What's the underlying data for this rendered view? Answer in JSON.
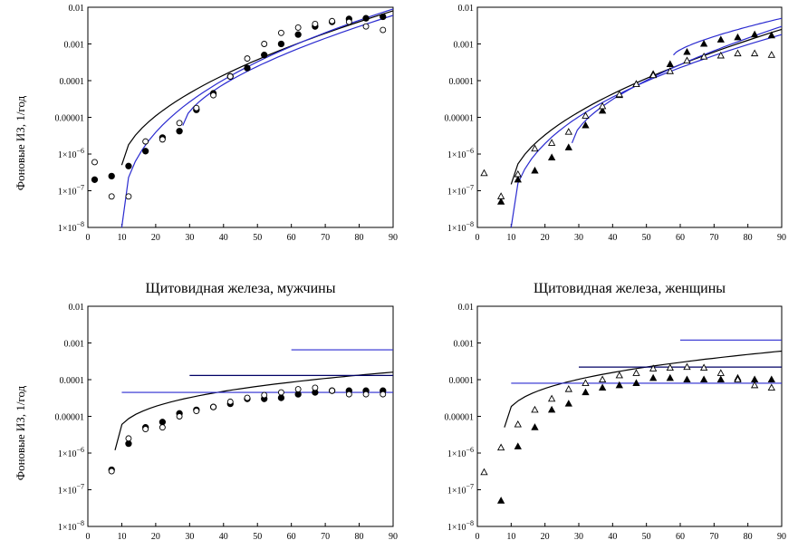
{
  "ylabel": "Фоновые ИЗ, 1/год",
  "chart_data": [
    {
      "type": "scatter",
      "title": "",
      "xlim": [
        0,
        90
      ],
      "ylim_log10": [
        -8,
        -2
      ],
      "xticks": [
        0,
        10,
        20,
        30,
        40,
        50,
        60,
        70,
        80,
        90
      ],
      "yticks": [
        {
          "v": -2,
          "m": "0.01",
          "e": ""
        },
        {
          "v": -3,
          "m": "0.001",
          "e": ""
        },
        {
          "v": -4,
          "m": "0.0001",
          "e": ""
        },
        {
          "v": -5,
          "m": "0.00001",
          "e": ""
        },
        {
          "v": -6,
          "m": "1×10",
          "e": "−6"
        },
        {
          "v": -7,
          "m": "1×10",
          "e": "−7"
        },
        {
          "v": -8,
          "m": "1×10",
          "e": "−8"
        }
      ],
      "points": [
        {
          "name": "filled-circles",
          "marker": "circle-filled",
          "x": [
            2,
            7,
            12,
            17,
            22,
            27,
            32,
            37,
            42,
            47,
            52,
            57,
            62,
            67,
            72,
            77,
            82,
            87
          ],
          "y": [
            2e-07,
            2.5e-07,
            4.7e-07,
            1.2e-06,
            2.8e-06,
            4.2e-06,
            1.6e-05,
            4.5e-05,
            0.00013,
            0.00022,
            0.0005,
            0.001,
            0.0018,
            0.003,
            0.004,
            0.0048,
            0.005,
            0.0055
          ]
        },
        {
          "name": "open-circles",
          "marker": "circle-open",
          "x": [
            2,
            7,
            12,
            17,
            22,
            27,
            32,
            37,
            42,
            47,
            52,
            57,
            62,
            67,
            72,
            77,
            82,
            87
          ],
          "y": [
            6e-07,
            7e-08,
            7e-08,
            2.2e-06,
            2.5e-06,
            7e-06,
            1.8e-05,
            4e-05,
            0.00013,
            0.0004,
            0.001,
            0.002,
            0.0028,
            0.0035,
            0.0042,
            0.004,
            0.003,
            0.0024
          ]
        }
      ],
      "lines": [
        {
          "name": "model-black",
          "color": "#000000",
          "x0": 10,
          "y0": 5e-07,
          "x1": 90,
          "y1": 0.008,
          "p": 0.55
        },
        {
          "name": "model-blue-1",
          "color": "#2b2bd0",
          "x0": 10,
          "y0": 1e-08,
          "x1": 90,
          "y1": 0.009,
          "p": 0.4
        },
        {
          "name": "model-blue-2",
          "color": "#2b2bd0",
          "x0": 28,
          "y0": 6e-06,
          "x1": 90,
          "y1": 0.006,
          "p": 0.6
        }
      ]
    },
    {
      "type": "scatter",
      "title": "",
      "xlim": [
        0,
        90
      ],
      "ylim_log10": [
        -8,
        -2
      ],
      "xticks": [
        0,
        10,
        20,
        30,
        40,
        50,
        60,
        70,
        80,
        90
      ],
      "yticks": [
        {
          "v": -2,
          "m": "0.01",
          "e": ""
        },
        {
          "v": -3,
          "m": "0.001",
          "e": ""
        },
        {
          "v": -4,
          "m": "0.0001",
          "e": ""
        },
        {
          "v": -5,
          "m": "0.00001",
          "e": ""
        },
        {
          "v": -6,
          "m": "1×10",
          "e": "−6"
        },
        {
          "v": -7,
          "m": "1×10",
          "e": "−7"
        },
        {
          "v": -8,
          "m": "1×10",
          "e": "−8"
        }
      ],
      "points": [
        {
          "name": "filled-triangles",
          "marker": "triangle-filled",
          "x": [
            7,
            12,
            17,
            22,
            27,
            32,
            37,
            42,
            47,
            52,
            57,
            62,
            67,
            72,
            77,
            82,
            87
          ],
          "y": [
            5e-08,
            2e-07,
            3.5e-07,
            8e-07,
            1.5e-06,
            6e-06,
            1.5e-05,
            4e-05,
            8e-05,
            0.00015,
            0.00028,
            0.0006,
            0.001,
            0.0013,
            0.0015,
            0.0018,
            0.0017
          ]
        },
        {
          "name": "open-triangles",
          "marker": "triangle-open",
          "x": [
            2,
            7,
            12,
            17,
            22,
            27,
            32,
            37,
            42,
            47,
            52,
            57,
            62,
            67,
            72,
            77,
            82,
            87
          ],
          "y": [
            3e-07,
            7e-08,
            2.8e-07,
            1.4e-06,
            2e-06,
            4e-06,
            1.1e-05,
            2e-05,
            4.2e-05,
            8e-05,
            0.00014,
            0.00018,
            0.00035,
            0.00045,
            0.00048,
            0.00055,
            0.00055,
            0.0005
          ]
        }
      ],
      "lines": [
        {
          "name": "model-black",
          "color": "#000000",
          "x0": 10,
          "y0": 1.5e-07,
          "x1": 90,
          "y1": 0.0025,
          "p": 0.55
        },
        {
          "name": "model-blue-1",
          "color": "#2b2bd0",
          "x0": 10,
          "y0": 1e-08,
          "x1": 90,
          "y1": 0.0018,
          "p": 0.4
        },
        {
          "name": "model-blue-2",
          "color": "#2b2bd0",
          "x0": 28,
          "y0": 2e-06,
          "x1": 90,
          "y1": 0.003,
          "p": 0.6
        },
        {
          "name": "model-blue-3",
          "color": "#2b2bd0",
          "x0": 58,
          "y0": 0.0005,
          "x1": 90,
          "y1": 0.005,
          "p": 0.7
        }
      ]
    },
    {
      "type": "scatter",
      "title": "Щитовидная железа, мужчины",
      "xlim": [
        0,
        90
      ],
      "ylim_log10": [
        -8,
        -2
      ],
      "xticks": [
        0,
        10,
        20,
        30,
        40,
        50,
        60,
        70,
        80,
        90
      ],
      "yticks": [
        {
          "v": -2,
          "m": "0.01",
          "e": ""
        },
        {
          "v": -3,
          "m": "0.001",
          "e": ""
        },
        {
          "v": -4,
          "m": "0.0001",
          "e": ""
        },
        {
          "v": -5,
          "m": "0.00001",
          "e": ""
        },
        {
          "v": -6,
          "m": "1×10",
          "e": "−6"
        },
        {
          "v": -7,
          "m": "1×10",
          "e": "−7"
        },
        {
          "v": -8,
          "m": "1×10",
          "e": "−8"
        }
      ],
      "points": [
        {
          "name": "filled-circles",
          "marker": "circle-filled",
          "x": [
            7,
            12,
            17,
            22,
            27,
            32,
            37,
            42,
            47,
            52,
            57,
            62,
            67,
            72,
            77,
            82,
            87
          ],
          "y": [
            3.5e-07,
            1.8e-06,
            5e-06,
            7e-06,
            1.2e-05,
            1.5e-05,
            1.8e-05,
            2.2e-05,
            3e-05,
            3e-05,
            3.2e-05,
            4e-05,
            4.5e-05,
            5e-05,
            5e-05,
            5e-05,
            5e-05
          ]
        },
        {
          "name": "open-circles",
          "marker": "circle-open",
          "x": [
            7,
            12,
            17,
            22,
            27,
            32,
            37,
            42,
            47,
            52,
            57,
            62,
            67,
            72,
            77,
            82,
            87
          ],
          "y": [
            3.2e-07,
            2.5e-06,
            4.5e-06,
            5e-06,
            1e-05,
            1.4e-05,
            1.8e-05,
            2.5e-05,
            3.2e-05,
            3.8e-05,
            4.5e-05,
            5.5e-05,
            6e-05,
            5e-05,
            4e-05,
            4e-05,
            4e-05
          ]
        }
      ],
      "lines": [
        {
          "name": "model-black",
          "color": "#000000",
          "x0": 8,
          "y0": 1.2e-06,
          "x1": 90,
          "y1": 0.00016,
          "p": 0.3
        }
      ],
      "hlines": [
        {
          "name": "level-blue-1",
          "color": "#2b2bd0",
          "x0": 10,
          "x1": 90,
          "y": 4.5e-05
        },
        {
          "name": "level-dark",
          "color": "#000066",
          "x0": 30,
          "x1": 90,
          "y": 0.00013
        },
        {
          "name": "level-blue-2",
          "color": "#2b2bd0",
          "x0": 60,
          "x1": 90,
          "y": 0.00065
        }
      ]
    },
    {
      "type": "scatter",
      "title": "Щитовидная железа, женщины",
      "xlim": [
        0,
        90
      ],
      "ylim_log10": [
        -8,
        -2
      ],
      "xticks": [
        0,
        10,
        20,
        30,
        40,
        50,
        60,
        70,
        80,
        90
      ],
      "yticks": [
        {
          "v": -2,
          "m": "0.01",
          "e": ""
        },
        {
          "v": -3,
          "m": "0.001",
          "e": ""
        },
        {
          "v": -4,
          "m": "0.0001",
          "e": ""
        },
        {
          "v": -5,
          "m": "0.00001",
          "e": ""
        },
        {
          "v": -6,
          "m": "1×10",
          "e": "−6"
        },
        {
          "v": -7,
          "m": "1×10",
          "e": "−7"
        },
        {
          "v": -8,
          "m": "1×10",
          "e": "−8"
        }
      ],
      "points": [
        {
          "name": "filled-triangles",
          "marker": "triangle-filled",
          "x": [
            7,
            12,
            17,
            22,
            27,
            32,
            37,
            42,
            47,
            52,
            57,
            62,
            67,
            72,
            77,
            82,
            87
          ],
          "y": [
            5e-08,
            1.5e-06,
            5e-06,
            1.5e-05,
            2.2e-05,
            4.5e-05,
            6e-05,
            7e-05,
            8e-05,
            0.00011,
            0.00011,
            0.0001,
            0.0001,
            0.0001,
            0.00011,
            0.0001,
            0.0001
          ]
        },
        {
          "name": "open-triangles",
          "marker": "triangle-open",
          "x": [
            2,
            7,
            12,
            17,
            22,
            27,
            32,
            37,
            42,
            47,
            52,
            57,
            62,
            67,
            72,
            77,
            82,
            87
          ],
          "y": [
            3e-07,
            1.4e-06,
            6e-06,
            1.5e-05,
            3e-05,
            5.5e-05,
            8e-05,
            0.0001,
            0.00013,
            0.00015,
            0.0002,
            0.00021,
            0.00022,
            0.00021,
            0.00015,
            0.0001,
            7e-05,
            6e-05
          ]
        }
      ],
      "lines": [
        {
          "name": "model-black",
          "color": "#000000",
          "x0": 8,
          "y0": 5e-06,
          "x1": 90,
          "y1": 0.0006,
          "p": 0.35
        }
      ],
      "hlines": [
        {
          "name": "level-blue-1",
          "color": "#2b2bd0",
          "x0": 10,
          "x1": 90,
          "y": 8e-05
        },
        {
          "name": "level-dark",
          "color": "#000066",
          "x0": 30,
          "x1": 90,
          "y": 0.00022
        },
        {
          "name": "level-blue-2",
          "color": "#2b2bd0",
          "x0": 60,
          "x1": 90,
          "y": 0.0012
        }
      ]
    }
  ]
}
